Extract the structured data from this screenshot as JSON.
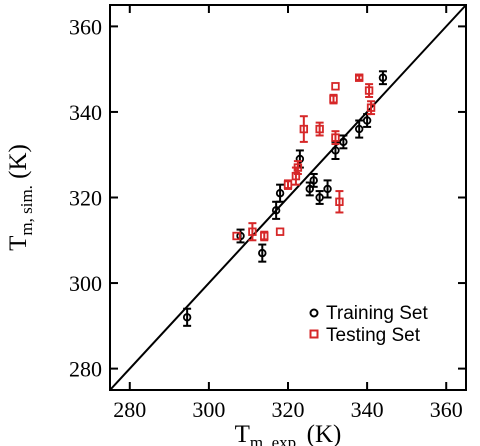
{
  "chart_data": {
    "type": "scatter",
    "xlabel": {
      "main": "T",
      "sub": "m, exp.",
      "unit": "(K)"
    },
    "ylabel": {
      "main": "T",
      "sub": "m, sim.",
      "unit": "(K)"
    },
    "xlim": [
      275,
      365
    ],
    "ylim": [
      275,
      365
    ],
    "xticks": [
      280,
      300,
      320,
      340,
      360
    ],
    "yticks": [
      280,
      300,
      320,
      340,
      360
    ],
    "xtick_labels": [
      "280",
      "300",
      "320",
      "340",
      "360"
    ],
    "ytick_labels": [
      "280",
      "300",
      "320",
      "340",
      "360"
    ],
    "diagonal": true,
    "grid": false,
    "legend_position": "bottom-right",
    "series": [
      {
        "name": "Training Set",
        "marker": "circle",
        "color": "#000000",
        "points": [
          {
            "x": 294.5,
            "y": 292,
            "err": 2
          },
          {
            "x": 308,
            "y": 311,
            "err": 1.5
          },
          {
            "x": 313.5,
            "y": 307,
            "err": 2
          },
          {
            "x": 317,
            "y": 317,
            "err": 2
          },
          {
            "x": 318,
            "y": 321,
            "err": 2
          },
          {
            "x": 323,
            "y": 329,
            "err": 2
          },
          {
            "x": 325.5,
            "y": 322,
            "err": 1.5
          },
          {
            "x": 326.5,
            "y": 324,
            "err": 1.5
          },
          {
            "x": 328,
            "y": 320,
            "err": 1.5
          },
          {
            "x": 330,
            "y": 322,
            "err": 2
          },
          {
            "x": 332,
            "y": 331,
            "err": 2
          },
          {
            "x": 334,
            "y": 333,
            "err": 1.5
          },
          {
            "x": 338,
            "y": 336,
            "err": 2
          },
          {
            "x": 340,
            "y": 338,
            "err": 1.5
          },
          {
            "x": 344,
            "y": 348,
            "err": 1.5
          }
        ]
      },
      {
        "name": "Testing Set",
        "marker": "square",
        "color": "#d62728",
        "points": [
          {
            "x": 307,
            "y": 311,
            "err": 0
          },
          {
            "x": 311,
            "y": 312,
            "err": 2
          },
          {
            "x": 314,
            "y": 311,
            "err": 1
          },
          {
            "x": 318,
            "y": 312,
            "err": 0
          },
          {
            "x": 320,
            "y": 323,
            "err": 1
          },
          {
            "x": 322,
            "y": 325,
            "err": 2
          },
          {
            "x": 322.5,
            "y": 327,
            "err": 1.5
          },
          {
            "x": 324,
            "y": 336,
            "err": 3
          },
          {
            "x": 328,
            "y": 336,
            "err": 1.5
          },
          {
            "x": 331.5,
            "y": 343,
            "err": 1
          },
          {
            "x": 332,
            "y": 346,
            "err": 0
          },
          {
            "x": 332,
            "y": 334,
            "err": 1.5
          },
          {
            "x": 333,
            "y": 319,
            "err": 2.5
          },
          {
            "x": 338,
            "y": 348,
            "err": 0.5
          },
          {
            "x": 340.5,
            "y": 345,
            "err": 1.5
          },
          {
            "x": 341,
            "y": 341,
            "err": 1.5
          }
        ]
      }
    ]
  }
}
